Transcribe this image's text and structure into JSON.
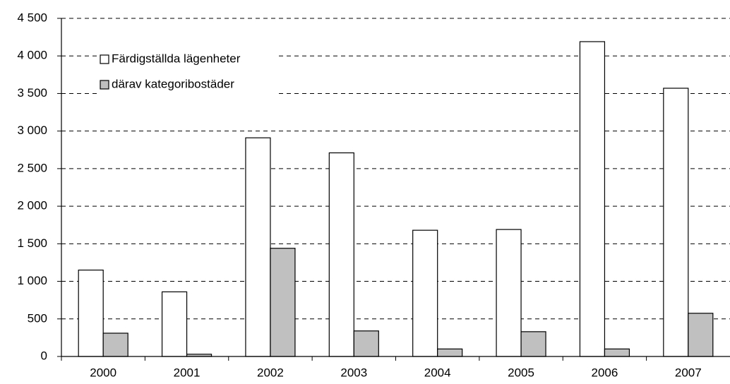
{
  "chart_data": {
    "type": "bar",
    "categories": [
      "2000",
      "2001",
      "2002",
      "2003",
      "2004",
      "2005",
      "2006",
      "2007"
    ],
    "series": [
      {
        "name": "Färdigställda lägenheter",
        "color": "#ffffff",
        "values": [
          1150,
          860,
          2910,
          2710,
          1680,
          1690,
          4190,
          3570
        ]
      },
      {
        "name": "därav kategoribostäder",
        "color": "#c0c0c0",
        "values": [
          310,
          30,
          1440,
          340,
          100,
          330,
          100,
          575
        ]
      }
    ],
    "ylim": [
      0,
      4500
    ],
    "yticks": [
      0,
      500,
      {
        "value": 1000,
        "label": "1 000"
      },
      {
        "value": 1500,
        "label": "1 500"
      },
      {
        "value": 2000,
        "label": "2 000"
      },
      {
        "value": 2500,
        "label": "2 500"
      },
      {
        "value": 3000,
        "label": "3 000"
      },
      {
        "value": 3500,
        "label": "3 500"
      },
      {
        "value": 4000,
        "label": "4 000"
      },
      {
        "value": 4500,
        "label": "4 500"
      }
    ],
    "grid": true,
    "legend": "upper left"
  }
}
